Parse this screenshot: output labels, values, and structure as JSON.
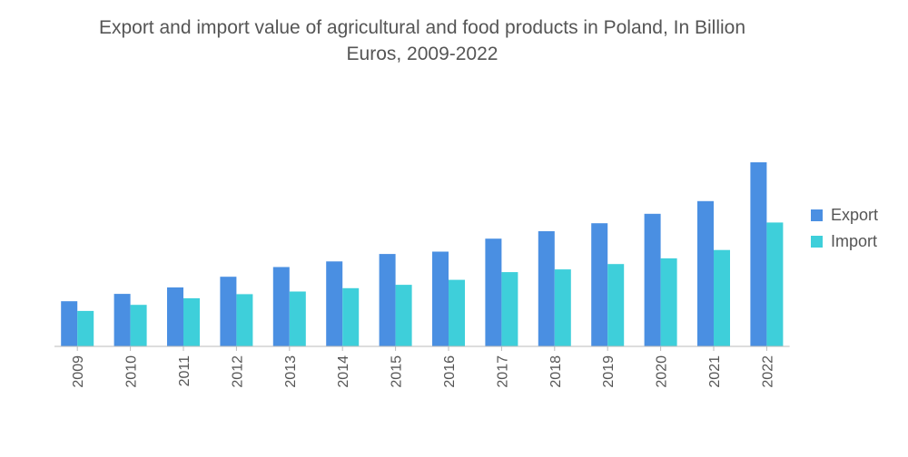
{
  "chart_data": {
    "type": "bar",
    "title_line1": "Export and import value of agricultural and food products in Poland, In Billion",
    "title_line2": "Euros, 2009-2022",
    "categories": [
      "2009",
      "2010",
      "2011",
      "2012",
      "2013",
      "2014",
      "2015",
      "2016",
      "2017",
      "2018",
      "2019",
      "2020",
      "2021",
      "2022"
    ],
    "series": [
      {
        "name": "Export",
        "color": "#4a8fe2",
        "values": [
          13.5,
          15.7,
          17.6,
          20.8,
          23.7,
          25.4,
          27.6,
          28.3,
          32.2,
          34.4,
          36.8,
          39.6,
          43.4,
          55.0
        ]
      },
      {
        "name": "Import",
        "color": "#3ecfda",
        "values": [
          10.6,
          12.4,
          14.4,
          15.6,
          16.4,
          17.4,
          18.4,
          19.9,
          22.2,
          23.0,
          24.6,
          26.3,
          28.8,
          37.0
        ]
      }
    ],
    "ylim": [
      0,
      60
    ],
    "grid": false,
    "legend_position": "right"
  }
}
